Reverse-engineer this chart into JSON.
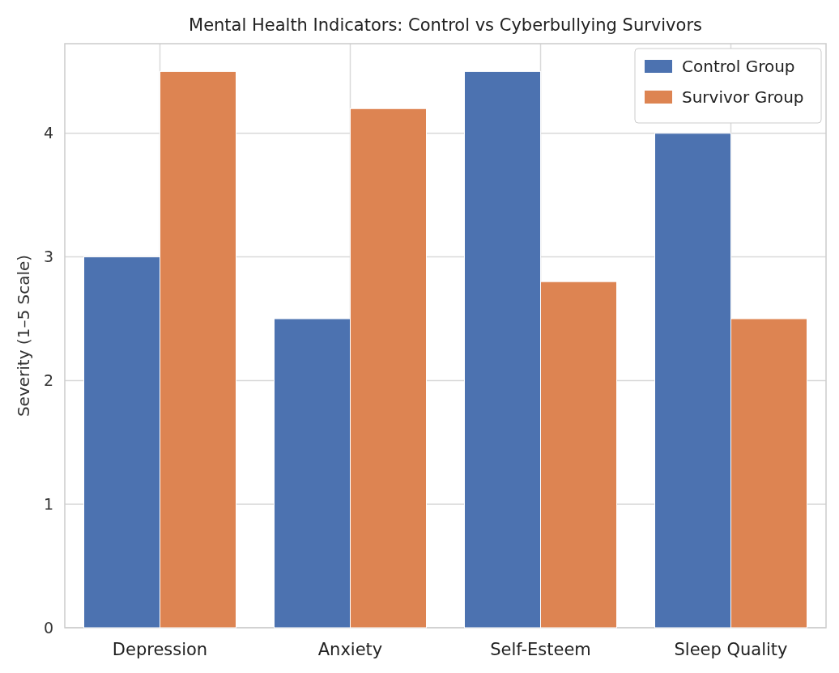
{
  "chart_data": {
    "type": "bar",
    "title": "Mental Health Indicators: Control vs Cyberbullying Survivors",
    "ylabel": "Severity (1–5 Scale)",
    "categories": [
      "Depression",
      "Anxiety",
      "Self-Esteem",
      "Sleep Quality"
    ],
    "series": [
      {
        "name": "Control Group",
        "color": "#4c72b0",
        "values": [
          3,
          2.5,
          4.5,
          4
        ]
      },
      {
        "name": "Survivor Group",
        "color": "#dd8452",
        "values": [
          4.5,
          4.2,
          2.8,
          2.5
        ]
      }
    ],
    "ylim": [
      0,
      4.725
    ],
    "yticks": [
      0,
      1,
      2,
      3,
      4
    ],
    "grid": true,
    "legend": "top right"
  }
}
